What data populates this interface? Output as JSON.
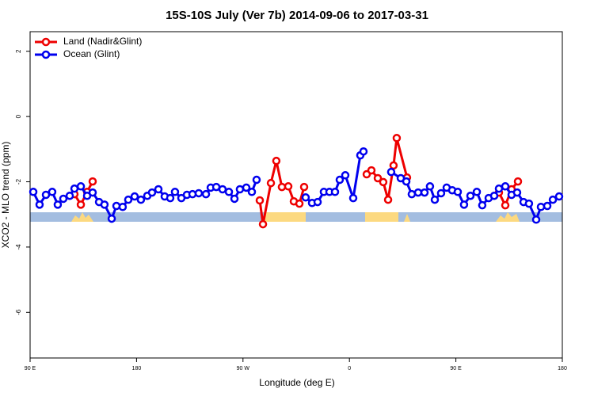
{
  "chart_data": {
    "type": "line",
    "title": "15S-10S July (Ver 7b)   2014-09-06 to 2017-03-31",
    "x_label": "Longitude (deg E)",
    "y_label": "XCO2 - MLO trend (ppm)",
    "xlim": [
      90,
      540
    ],
    "xticks": [
      {
        "value": 90,
        "label": "90 E"
      },
      180,
      {
        "value": 270,
        "label": "90 W"
      },
      {
        "value": 360,
        "label": "0"
      },
      {
        "value": 450,
        "label": "90 E"
      },
      {
        "value": 540,
        "label": "180"
      }
    ],
    "ylim": [
      -7.4,
      2.6
    ],
    "yticks": [
      2,
      0,
      -2,
      -4,
      -6
    ],
    "legend": "topleft",
    "series": [
      {
        "name": "Land (Nadir&Glint)",
        "color": "#ee0000",
        "x": [
          127.5,
          132.9,
          138.2,
          142.9,
          211.9,
          284.2,
          286.9,
          293.6,
          298.2,
          302.9,
          308.3,
          313.0,
          317.7,
          321.7,
          345.8,
          374.6,
          378.6,
          384.0,
          388.6,
          392.7,
          397.3,
          400.0,
          408.7,
          446.2,
          486.4,
          491.8,
          497.1,
          502.5
        ],
        "values": [
          -2.38,
          -2.7,
          -2.31,
          -1.99,
          null,
          -2.57,
          -3.3,
          -2.04,
          -1.36,
          -2.16,
          -2.14,
          -2.6,
          -2.67,
          -2.16,
          null,
          -1.77,
          -1.65,
          -1.89,
          -2.01,
          -2.55,
          -1.5,
          -0.66,
          -1.87,
          null,
          -2.33,
          -2.72,
          -2.23,
          -1.99
        ]
      },
      {
        "name": "Ocean (Glint)",
        "color": "#0000ee",
        "x": [
          92.7,
          98.0,
          103.4,
          108.7,
          113.4,
          118.1,
          123.5,
          127.5,
          132.9,
          138.2,
          142.9,
          148.3,
          152.9,
          159.0,
          163.0,
          168.3,
          173.0,
          178.4,
          183.7,
          189.1,
          193.1,
          198.5,
          203.8,
          208.5,
          212.5,
          217.9,
          222.6,
          227.3,
          232.6,
          238.7,
          242.7,
          247.4,
          252.7,
          258.1,
          262.8,
          267.4,
          272.8,
          277.5,
          281.5,
          302.3,
          323.0,
          328.4,
          333.1,
          338.4,
          343.1,
          347.8,
          351.8,
          356.5,
          363.2,
          369.2,
          371.9,
          383.3,
          395.3,
          403.4,
          408.1,
          412.7,
          418.1,
          423.5,
          428.1,
          432.2,
          437.5,
          442.2,
          446.9,
          451.6,
          456.9,
          462.3,
          467.7,
          472.3,
          477.7,
          482.4,
          486.4,
          491.8,
          497.1,
          501.8,
          507.2,
          511.8,
          517.9,
          521.9,
          527.3,
          532.0,
          537.3
        ],
        "values": [
          -2.31,
          -2.7,
          -2.4,
          -2.31,
          -2.7,
          -2.52,
          -2.43,
          -2.21,
          -2.14,
          -2.43,
          -2.33,
          -2.62,
          -2.7,
          -3.13,
          -2.74,
          -2.77,
          -2.55,
          -2.45,
          -2.55,
          -2.43,
          -2.33,
          -2.23,
          -2.45,
          -2.5,
          -2.31,
          -2.5,
          -2.4,
          -2.38,
          -2.35,
          -2.38,
          -2.18,
          -2.16,
          -2.23,
          -2.31,
          -2.52,
          -2.23,
          -2.18,
          -2.31,
          -1.94,
          null,
          -2.48,
          -2.65,
          -2.62,
          -2.31,
          -2.31,
          -2.31,
          -1.94,
          -1.8,
          -2.5,
          -1.19,
          -1.07,
          null,
          -1.7,
          -1.89,
          -1.99,
          -2.38,
          -2.33,
          -2.33,
          -2.14,
          -2.55,
          -2.35,
          -2.18,
          -2.26,
          -2.31,
          -2.7,
          -2.43,
          -2.31,
          -2.72,
          -2.5,
          -2.43,
          -2.21,
          -2.14,
          -2.4,
          -2.33,
          -2.62,
          -2.67,
          -3.16,
          -2.77,
          -2.74,
          -2.55,
          -2.45
        ]
      }
    ]
  }
}
